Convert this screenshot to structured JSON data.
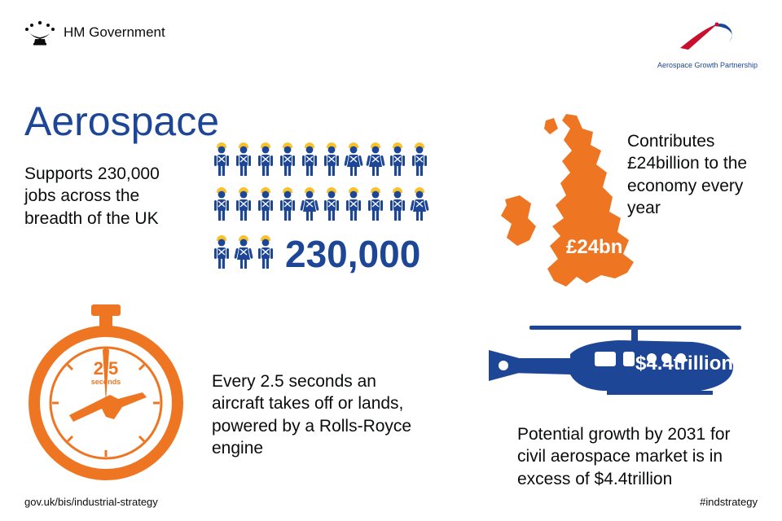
{
  "header": {
    "gov_label": "HM Government",
    "agp_label": "Aerospace Growth Partnership"
  },
  "title": "Aerospace",
  "colors": {
    "primary": "#1d4696",
    "accent": "#ee7623",
    "hardhat": "#f9c22b",
    "text": "#0b0c0c",
    "white": "#ffffff",
    "agp_red": "#c8102e"
  },
  "jobs": {
    "caption": "Supports 230,000 jobs across the breadth of the UK",
    "number": "230,000",
    "people_rows": [
      10,
      10,
      3
    ]
  },
  "uk": {
    "caption": "Contributes £24billion to the economy every year",
    "label": "£24bn"
  },
  "stopwatch": {
    "seconds_value": "2.5",
    "seconds_unit": "seconds",
    "caption": "Every 2.5 seconds an aircraft takes off or lands, powered by a Rolls-Royce engine"
  },
  "helicopter": {
    "label": "$4.4trillion",
    "caption": "Potential growth by 2031 for civil aerospace market is in excess of $4.4trillion"
  },
  "footer": {
    "url": "gov.uk/bis/industrial-strategy",
    "hashtag": "#indstrategy"
  },
  "typography": {
    "title_fontsize": 50,
    "body_fontsize": 21,
    "number_fontsize": 46,
    "footer_fontsize": 13
  }
}
